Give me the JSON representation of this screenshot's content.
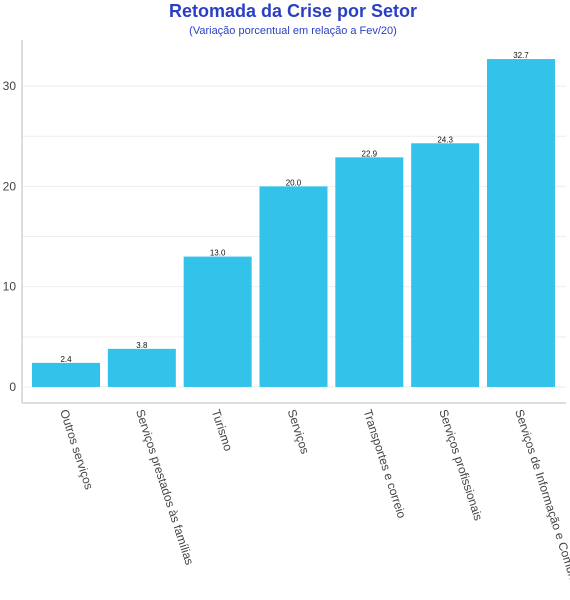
{
  "colors": {
    "bar": "#33c3ea",
    "title": "#2a3fc4",
    "axis": "#bbbbbb",
    "grid": "#eeeeee"
  },
  "chart_data": {
    "type": "bar",
    "title": "Retomada da Crise por Setor",
    "subtitle": "(Variação porcentual em relação a Fev/20)",
    "xlabel": "",
    "ylabel": "",
    "categories": [
      "Outros serviços",
      "Serviços prestados às famílias",
      "Turismo",
      "Serviços",
      "Transportes e correio",
      "Serviços profissionais",
      "Serviços de Informação e Comunicação"
    ],
    "values": [
      2.4,
      3.8,
      13.0,
      20.0,
      22.9,
      24.3,
      32.7
    ],
    "data_labels": [
      "2.4",
      "3.8",
      "13.0",
      "20.0",
      "22.9",
      "24.3",
      "32.7"
    ],
    "yticks": [
      0,
      10,
      20,
      30
    ],
    "ytick_labels": [
      "0",
      "10",
      "20",
      "30"
    ],
    "ylim": [
      -1.6,
      34.6
    ],
    "grid": true,
    "legend": "none"
  }
}
